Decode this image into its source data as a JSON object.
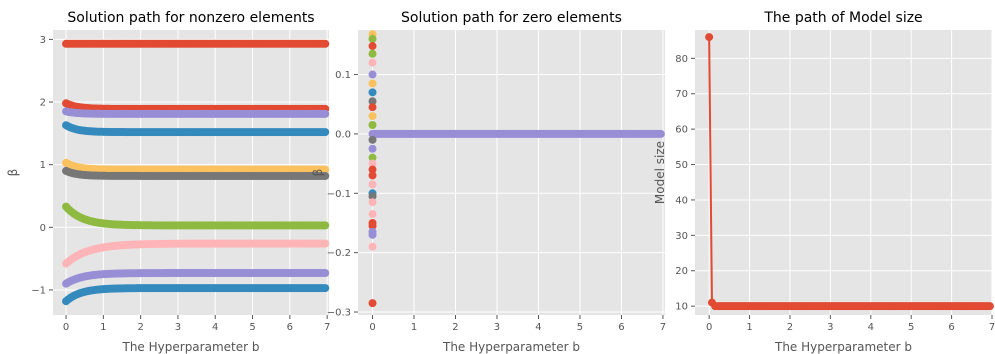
{
  "chart_data": [
    {
      "type": "scatter",
      "title": "Solution path for nonzero elements",
      "xlabel": "The Hyperparameter b",
      "ylabel": "β",
      "xlim": [
        -0.35,
        7.05
      ],
      "ylim": [
        -1.4,
        3.15
      ],
      "xticks": [
        0,
        1,
        2,
        3,
        4,
        5,
        6,
        7
      ],
      "yticks": [
        -1,
        0,
        1,
        2,
        3
      ],
      "grid": true,
      "x_range": [
        0,
        6.95
      ],
      "series": [
        {
          "color": "#e24a33",
          "start": 2.93,
          "end": 2.93,
          "decay": 0.2
        },
        {
          "color": "#e24a33",
          "start": 1.98,
          "end": 1.89,
          "decay": 0.3
        },
        {
          "color": "#988ed5",
          "start": 1.85,
          "end": 1.81,
          "decay": 0.3
        },
        {
          "color": "#348abd",
          "start": 1.63,
          "end": 1.52,
          "decay": 0.3
        },
        {
          "color": "#fbc15e",
          "start": 1.03,
          "end": 0.92,
          "decay": 0.3
        },
        {
          "color": "#777777",
          "start": 0.9,
          "end": 0.82,
          "decay": 0.3
        },
        {
          "color": "#8eba42",
          "start": 0.33,
          "end": 0.03,
          "decay": 0.45
        },
        {
          "color": "#ffb5b8",
          "start": -0.58,
          "end": -0.26,
          "decay": 0.6
        },
        {
          "color": "#988ed5",
          "start": -0.9,
          "end": -0.73,
          "decay": 0.45
        },
        {
          "color": "#348abd",
          "start": -1.18,
          "end": -0.97,
          "decay": 0.4
        }
      ]
    },
    {
      "type": "scatter",
      "title": "Solution path for zero elements",
      "xlabel": "The Hyperparameter b",
      "ylabel": "β",
      "xlim": [
        -0.35,
        7.05
      ],
      "ylim": [
        -0.305,
        0.175
      ],
      "xticks": [
        0,
        1,
        2,
        3,
        4,
        5,
        6,
        7
      ],
      "yticks": [
        -0.3,
        -0.2,
        -0.1,
        0.0,
        0.1
      ],
      "ytick_labels": [
        "−0.3",
        "−0.2",
        "−0.1",
        "0.0",
        "0.1"
      ],
      "grid": true,
      "points_at_b0": [
        {
          "y": 0.168,
          "color": "#fbc15e"
        },
        {
          "y": 0.16,
          "color": "#8eba42"
        },
        {
          "y": 0.148,
          "color": "#e24a33"
        },
        {
          "y": 0.135,
          "color": "#8eba42"
        },
        {
          "y": 0.12,
          "color": "#ffb5b8"
        },
        {
          "y": 0.1,
          "color": "#988ed5"
        },
        {
          "y": 0.085,
          "color": "#fbc15e"
        },
        {
          "y": 0.07,
          "color": "#348abd"
        },
        {
          "y": 0.055,
          "color": "#777777"
        },
        {
          "y": 0.045,
          "color": "#e24a33"
        },
        {
          "y": 0.03,
          "color": "#fbc15e"
        },
        {
          "y": 0.015,
          "color": "#8eba42"
        },
        {
          "y": -0.01,
          "color": "#777777"
        },
        {
          "y": -0.025,
          "color": "#988ed5"
        },
        {
          "y": -0.04,
          "color": "#8eba42"
        },
        {
          "y": -0.05,
          "color": "#ffb5b8"
        },
        {
          "y": -0.06,
          "color": "#e24a33"
        },
        {
          "y": -0.07,
          "color": "#e24a33"
        },
        {
          "y": -0.085,
          "color": "#ffb5b8"
        },
        {
          "y": -0.1,
          "color": "#348abd"
        },
        {
          "y": -0.105,
          "color": "#777777"
        },
        {
          "y": -0.115,
          "color": "#ffb5b8"
        },
        {
          "y": -0.135,
          "color": "#ffb5b8"
        },
        {
          "y": -0.15,
          "color": "#e24a33"
        },
        {
          "y": -0.155,
          "color": "#e24a33"
        },
        {
          "y": -0.165,
          "color": "#988ed5"
        },
        {
          "y": -0.17,
          "color": "#988ed5"
        },
        {
          "y": -0.19,
          "color": "#ffb5b8"
        },
        {
          "y": -0.285,
          "color": "#e24a33"
        }
      ],
      "zero_line": {
        "y": 0.0,
        "color": "#988ed5",
        "x_range": [
          0,
          6.95
        ]
      }
    },
    {
      "type": "line",
      "title": "The path of Model size",
      "xlabel": "The Hyperparameter b",
      "ylabel": "Model size",
      "xlim": [
        -0.35,
        7.0
      ],
      "ylim": [
        7.5,
        88
      ],
      "xticks": [
        0,
        1,
        2,
        3,
        4,
        5,
        6,
        7
      ],
      "yticks": [
        10,
        20,
        30,
        40,
        50,
        60,
        70,
        80
      ],
      "grid": true,
      "color": "#e24a33",
      "x": [
        0,
        0.07,
        0.15,
        6.95
      ],
      "y": [
        86,
        11,
        10,
        10
      ]
    }
  ]
}
